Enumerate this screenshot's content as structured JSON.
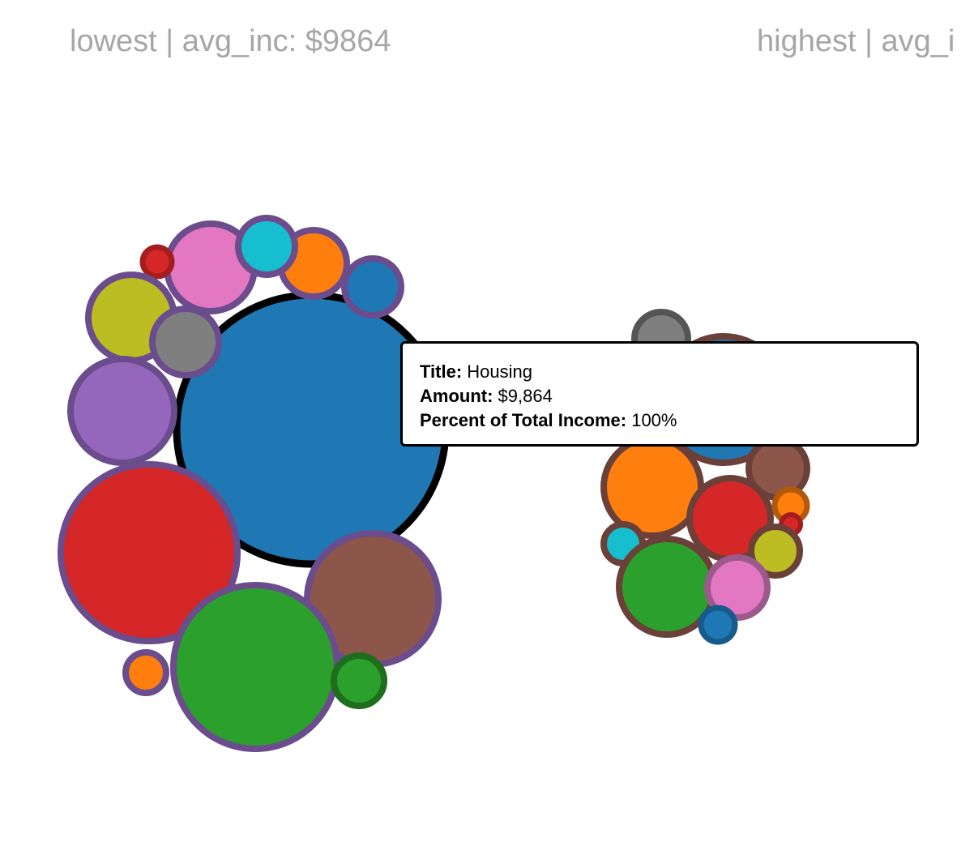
{
  "titles": {
    "lowest": "lowest | avg_inc: $9864",
    "highest": "highest | avg_i"
  },
  "tooltip": {
    "title_label": "Title:",
    "title_value": "Housing",
    "amount_label": "Amount:",
    "amount_value": "$9,864",
    "percent_label": "Percent of Total Income:",
    "percent_value": "100%"
  },
  "colors": {
    "lowest_group_stroke": "#6b4c8c",
    "highest_group_stroke": "#6b4038",
    "highlight_stroke": "#000000",
    "blue": "#1f77b4",
    "orange": "#ff7f0e",
    "green": "#2ca02c",
    "red": "#d62728",
    "purple": "#9467bd",
    "brown": "#8c564b",
    "pink": "#e377c2",
    "gray": "#7f7f7f",
    "olive": "#bcbd22",
    "cyan": "#17becf"
  }
}
